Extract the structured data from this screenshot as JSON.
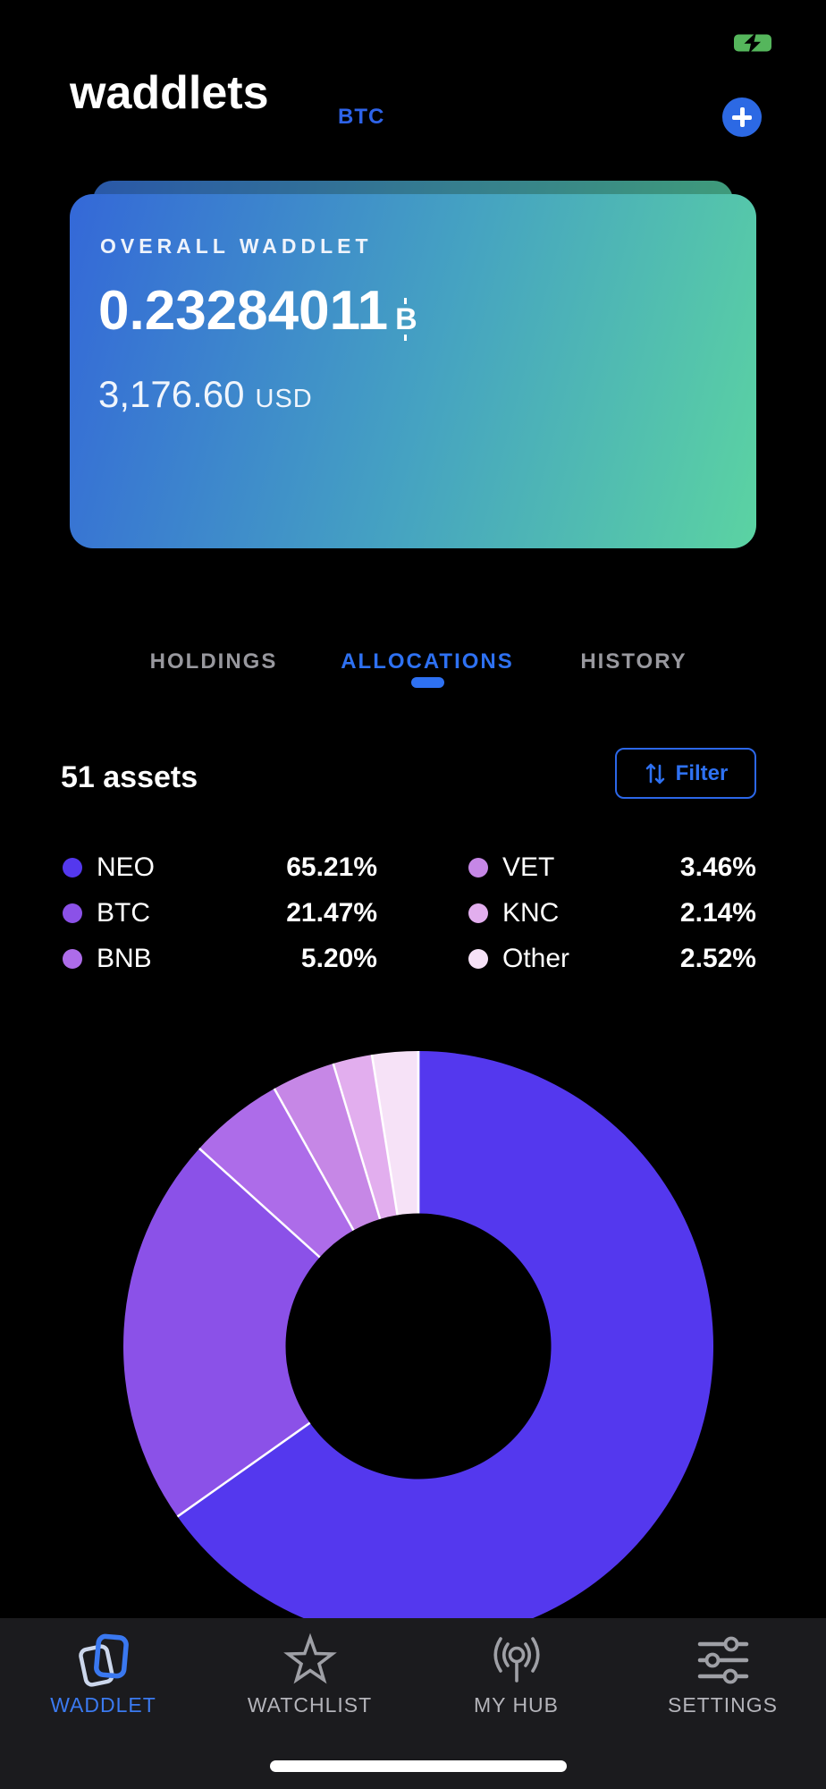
{
  "status_bar": {
    "battery_icon": "battery-charging"
  },
  "header": {
    "title": "waddlets",
    "currency_tag": "BTC"
  },
  "overview_card": {
    "label": "OVERALL WADDLET",
    "balance": "0.23284011",
    "symbol": "₿",
    "symbol_fallback": "B",
    "fiat_amount": "3,176.60",
    "fiat_currency": "USD"
  },
  "tabs": {
    "items": [
      {
        "label": "HOLDINGS",
        "active": false
      },
      {
        "label": "ALLOCATIONS",
        "active": true
      },
      {
        "label": "HISTORY",
        "active": false
      }
    ]
  },
  "assets_section": {
    "count": "51 assets",
    "filter_label": "Filter"
  },
  "chart_data": {
    "type": "pie",
    "donut": true,
    "start_angle_deg": 0,
    "clockwise": true,
    "labels": [
      "NEO",
      "BTC",
      "BNB",
      "VET",
      "KNC",
      "Other"
    ],
    "values": [
      65.21,
      21.47,
      5.2,
      3.46,
      2.14,
      2.52
    ],
    "display_values": [
      "65.21%",
      "21.47%",
      "5.20%",
      "3.46%",
      "2.14%",
      "2.52%"
    ],
    "colors": [
      "#5438ee",
      "#8b51e8",
      "#ad6ce9",
      "#c687e6",
      "#e2aeee",
      "#f6e2f7"
    ],
    "inner_radius_ratio": 0.45,
    "separator_color": "#ffffff",
    "legend_position": "above-chart",
    "title": ""
  },
  "legend": {
    "left": [
      {
        "asset": "NEO",
        "pct": "65.21%",
        "color_index": 0
      },
      {
        "asset": "BTC",
        "pct": "21.47%",
        "color_index": 1
      },
      {
        "asset": "BNB",
        "pct": "5.20%",
        "color_index": 2
      }
    ],
    "right": [
      {
        "asset": "VET",
        "pct": "3.46%",
        "color_index": 3
      },
      {
        "asset": "KNC",
        "pct": "2.14%",
        "color_index": 4
      },
      {
        "asset": "Other",
        "pct": "2.52%",
        "color_index": 5
      }
    ]
  },
  "tab_bar": {
    "items": [
      {
        "label": "WADDLET",
        "icon": "waddlet-cards-icon",
        "active": true
      },
      {
        "label": "WATCHLIST",
        "icon": "star-icon",
        "active": false
      },
      {
        "label": "MY HUB",
        "icon": "broadcast-icon",
        "active": false
      },
      {
        "label": "SETTINGS",
        "icon": "sliders-icon",
        "active": false
      }
    ]
  },
  "colors": {
    "background": "#000000",
    "accent_blue": "#2c69e4",
    "tab_active_blue": "#3b7af0",
    "inactive_gray": "#98989e",
    "tabbar_bg": "#1b1b1e",
    "card_gradient_start": "#3468d8",
    "card_gradient_end": "#5bd3a2",
    "battery_green": "#55b65c"
  }
}
